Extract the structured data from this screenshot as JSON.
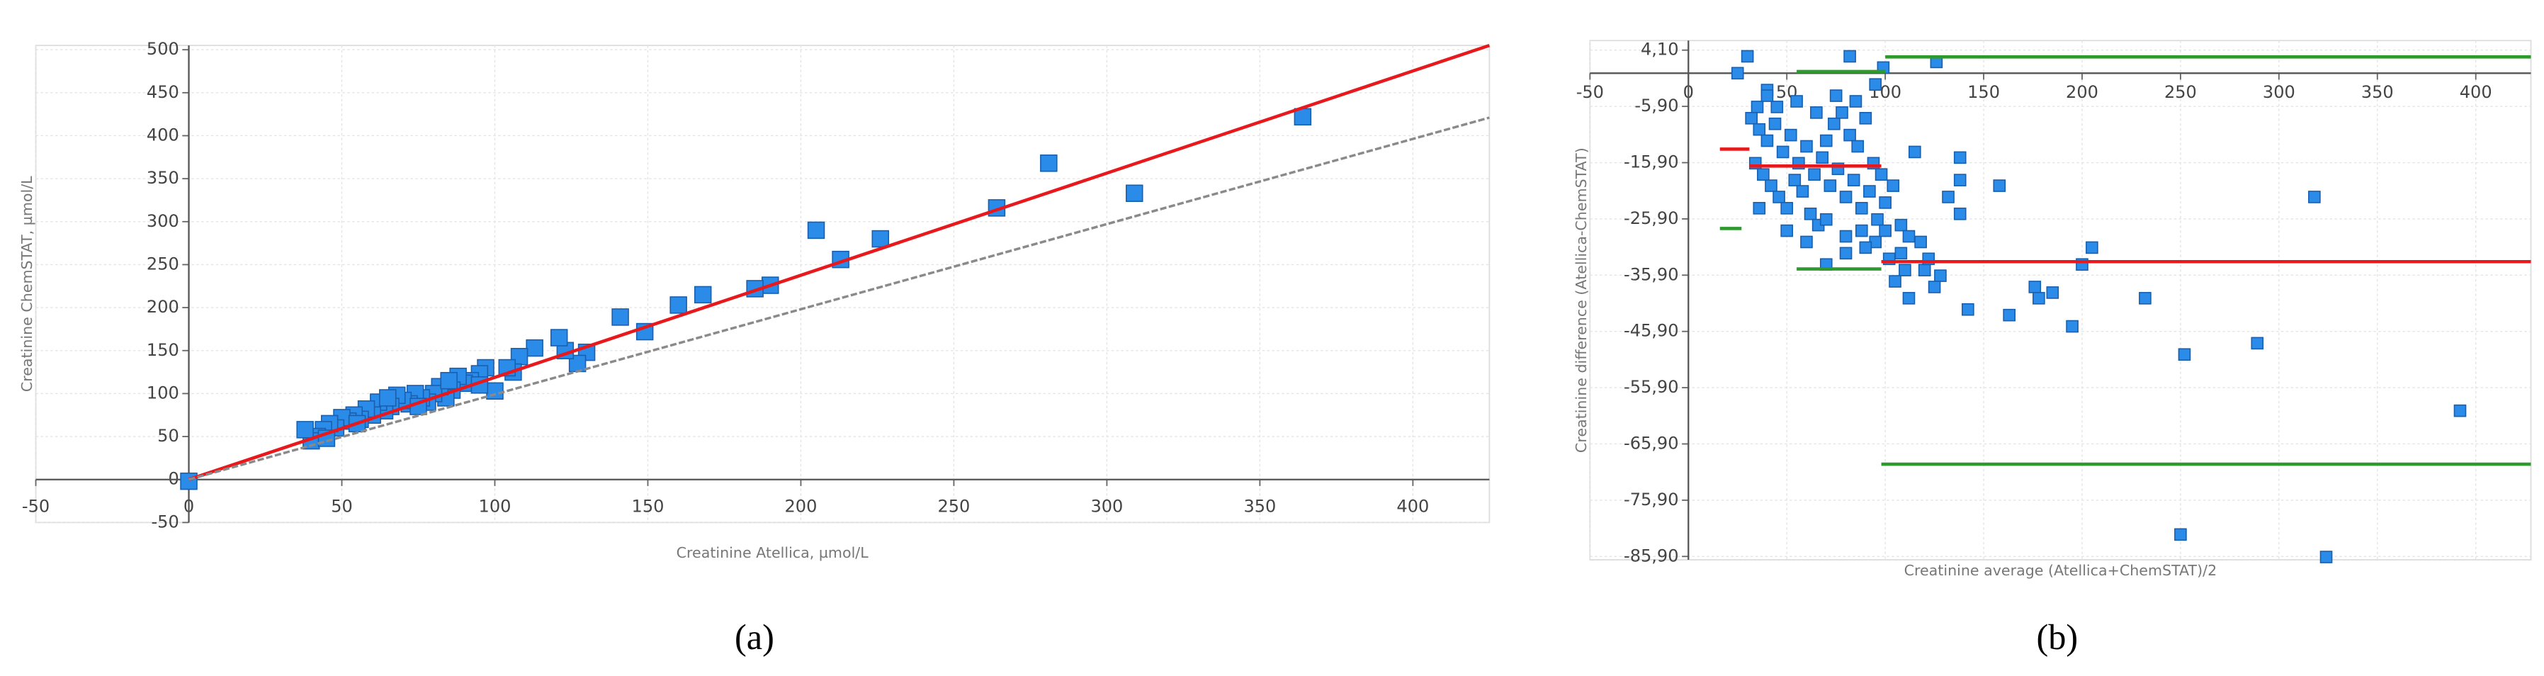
{
  "chart_data": [
    {
      "type": "scatter",
      "panel_label": "(a)",
      "x_label": "Creatinine Atellica, µmol/L",
      "y_label": "Creatinine ChemSTAT, µmol/L",
      "xlim": [
        -50,
        425
      ],
      "ylim": [
        -50,
        505
      ],
      "xticks": [
        -50,
        0,
        50,
        100,
        150,
        200,
        250,
        300,
        350,
        400
      ],
      "yticks": [
        -50,
        0,
        50,
        100,
        150,
        200,
        250,
        300,
        350,
        400,
        450,
        500
      ],
      "grid": true,
      "color": "#2a8be8",
      "x": [
        0,
        364,
        281,
        309,
        264,
        226,
        213,
        205,
        190,
        185,
        168,
        160,
        149,
        141,
        130,
        127,
        123,
        121,
        113,
        108,
        106,
        100,
        97,
        95,
        92,
        90,
        88,
        86,
        84,
        82,
        80,
        78,
        76,
        74,
        72,
        70,
        68,
        66,
        64,
        62,
        60,
        58,
        56,
        54,
        52,
        50,
        48,
        46,
        44,
        42,
        40,
        38,
        45,
        55,
        65,
        75,
        85,
        95,
        104
      ],
      "y": [
        -2,
        422,
        368,
        333,
        316,
        280,
        256,
        290,
        226,
        222,
        215,
        203,
        172,
        189,
        148,
        135,
        150,
        165,
        153,
        143,
        125,
        103,
        130,
        123,
        115,
        112,
        120,
        104,
        95,
        108,
        100,
        90,
        95,
        100,
        88,
        92,
        98,
        85,
        80,
        90,
        75,
        82,
        70,
        75,
        68,
        72,
        60,
        65,
        58,
        50,
        45,
        58,
        48,
        65,
        95,
        85,
        115,
        110,
        130
      ],
      "lines": [
        {
          "color": "#e8191c",
          "dashed": false,
          "x": [
            0,
            425
          ],
          "y": [
            0,
            505
          ]
        },
        {
          "color": "#8a8a8a",
          "dashed": true,
          "x": [
            0,
            425
          ],
          "y": [
            0,
            421
          ]
        }
      ]
    },
    {
      "type": "scatter",
      "panel_label": "(b)",
      "x_label": "Creatinine average (Atellica+ChemSTAT)/2",
      "y_label": "Creatinine difference (Atellica-ChemSTAT)",
      "xlim": [
        -50,
        428
      ],
      "ylim": [
        -86.5,
        5.8
      ],
      "xticks": [
        -50,
        0,
        50,
        100,
        150,
        200,
        250,
        300,
        350,
        400
      ],
      "yticks": [
        {
          "value": 4.1,
          "label": "4,10"
        },
        {
          "value": -5.9,
          "label": "-5,90"
        },
        {
          "value": -15.9,
          "label": "-15,90"
        },
        {
          "value": -25.9,
          "label": "-25,90"
        },
        {
          "value": -35.9,
          "label": "-35,90"
        },
        {
          "value": -45.9,
          "label": "-45,90"
        },
        {
          "value": -55.9,
          "label": "-55,90"
        },
        {
          "value": -65.9,
          "label": "-65,90"
        },
        {
          "value": -75.9,
          "label": "-75,90"
        },
        {
          "value": -85.9,
          "label": "-85,90"
        }
      ],
      "grid": true,
      "color": "#2a8be8",
      "x": [
        250,
        324,
        392,
        318,
        289,
        252,
        232,
        195,
        205,
        200,
        176,
        178,
        185,
        163,
        142,
        158,
        138,
        138,
        138,
        132,
        128,
        125,
        120,
        112,
        110,
        105,
        108,
        102,
        95,
        88,
        80,
        70,
        126,
        82,
        99,
        95,
        30,
        25,
        40,
        35,
        32,
        36,
        40,
        44,
        48,
        52,
        56,
        60,
        64,
        68,
        72,
        76,
        80,
        84,
        88,
        92,
        96,
        100,
        104,
        108,
        112,
        34,
        38,
        42,
        46,
        50,
        54,
        58,
        62,
        66,
        70,
        74,
        78,
        82,
        86,
        90,
        94,
        98,
        45,
        55,
        65,
        75,
        85,
        50,
        60,
        70,
        80,
        90,
        100,
        36,
        40,
        115,
        118,
        122
      ],
      "y": [
        -82,
        -86,
        -60,
        -22,
        -48,
        -50,
        -40,
        -45,
        -31,
        -34,
        -38,
        -40,
        -39,
        -43,
        -42,
        -20,
        -15,
        -19,
        -25,
        -22,
        -36,
        -38,
        -35,
        -40,
        -35,
        -37,
        -32,
        -33,
        -30,
        -28,
        -32,
        -34,
        2,
        3,
        1,
        -2,
        3,
        0,
        -3,
        -6,
        -8,
        -10,
        -12,
        -9,
        -14,
        -11,
        -16,
        -13,
        -18,
        -15,
        -20,
        -17,
        -22,
        -19,
        -24,
        -21,
        -26,
        -23,
        -20,
        -27,
        -29,
        -16,
        -18,
        -20,
        -22,
        -24,
        -19,
        -21,
        -25,
        -27,
        -12,
        -9,
        -7,
        -11,
        -13,
        -8,
        -16,
        -18,
        -6,
        -5,
        -7,
        -4,
        -5,
        -28,
        -30,
        -26,
        -29,
        -31,
        -28,
        -24,
        -4,
        -14,
        -30,
        -33
      ],
      "lines": [
        {
          "color": "#2e9a2e",
          "dashed": false,
          "x": [
            55,
            100
          ],
          "y": [
            0.3,
            0.3
          ]
        },
        {
          "color": "#2e9a2e",
          "dashed": false,
          "x": [
            100,
            428
          ],
          "y": [
            2.9,
            2.9
          ]
        },
        {
          "color": "#e8191c",
          "dashed": false,
          "x": [
            16,
            31
          ],
          "y": [
            -13.5,
            -13.5
          ]
        },
        {
          "color": "#e8191c",
          "dashed": false,
          "x": [
            31,
            98
          ],
          "y": [
            -16.5,
            -16.5
          ]
        },
        {
          "color": "#e8191c",
          "dashed": false,
          "x": [
            98,
            428
          ],
          "y": [
            -33.5,
            -33.5
          ]
        },
        {
          "color": "#2e9a2e",
          "dashed": false,
          "x": [
            16,
            27
          ],
          "y": [
            -27.6,
            -27.6
          ]
        },
        {
          "color": "#2e9a2e",
          "dashed": false,
          "x": [
            55,
            98
          ],
          "y": [
            -34.8,
            -34.8
          ]
        },
        {
          "color": "#2e9a2e",
          "dashed": false,
          "x": [
            98,
            428
          ],
          "y": [
            -69.5,
            -69.5
          ]
        }
      ]
    }
  ]
}
